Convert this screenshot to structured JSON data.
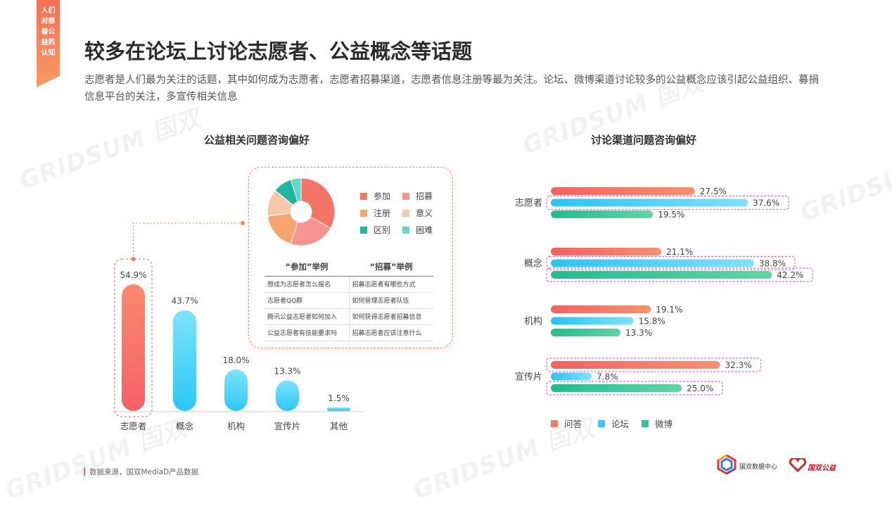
{
  "side_tab": {
    "lines": [
      "人们",
      "对慈",
      "善公",
      "益的",
      "认知"
    ]
  },
  "title": "较多在论坛上讨论志愿者、公益概念等话题",
  "subtitle": "志愿者是人们最为关注的话题，其中如何成为志愿者，志愿者招募渠道，志愿者信息注册等最为关注。论坛、微博渠道讨论较多的公益概念应该引起公益组织、募捐信息平台的关注，多宣传相关信息",
  "left_panel": {
    "title": "公益相关问题咨询偏好",
    "pie_legend": [
      {
        "label": "参加",
        "color": "#f47468"
      },
      {
        "label": "招募",
        "color": "#f59490"
      },
      {
        "label": "注册",
        "color": "#f7a56e"
      },
      {
        "label": "意义",
        "color": "#f8c6a8"
      },
      {
        "label": "区别",
        "color": "#1cb79c"
      },
      {
        "label": "困难",
        "color": "#64d8c8"
      }
    ],
    "table": {
      "headers": [
        "“参加”举例",
        "“招募”举例"
      ],
      "rows": [
        [
          "想成为志愿者怎么报名",
          "招募志愿者有哪些方式"
        ],
        [
          "志愿者QQ群",
          "如何管理志愿者队伍"
        ],
        [
          "腾讯公益志愿者如何加入",
          "如何获得志愿者招募信息"
        ],
        [
          "公益志愿者有技能要求吗",
          "招募志愿者应该注意什么"
        ]
      ]
    }
  },
  "right_panel": {
    "title": "讨论渠道问题咨询偏好"
  },
  "chart_data": [
    {
      "type": "bar",
      "title": "公益相关问题咨询偏好",
      "categories": [
        "志愿者",
        "概念",
        "机构",
        "宣传片",
        "其他"
      ],
      "values": [
        54.9,
        43.7,
        18.0,
        13.3,
        1.5
      ],
      "value_labels": [
        "54.9%",
        "43.7%",
        "18.0%",
        "13.3%",
        "1.5%"
      ],
      "unit": "%",
      "highlight": "志愿者",
      "colors": {
        "highlight": "#f8725f",
        "normal": "#32cdf7"
      }
    },
    {
      "type": "pie",
      "labels": [
        "参加",
        "招募",
        "注册",
        "意义",
        "区别",
        "困难"
      ],
      "values": [
        33,
        22,
        18,
        13,
        9,
        5
      ],
      "colors": [
        "#f47468",
        "#f59490",
        "#f7a56e",
        "#f8c6a8",
        "#1cb79c",
        "#64d8c8"
      ]
    },
    {
      "type": "bar",
      "orientation": "horizontal",
      "title": "讨论渠道问题咨询偏好",
      "categories": [
        "志愿者",
        "概念",
        "机构",
        "宣传片"
      ],
      "series": [
        {
          "name": "问答",
          "values": [
            27.5,
            21.1,
            19.1,
            32.3
          ],
          "labels": [
            "27.5%",
            "21.1%",
            "19.1%",
            "32.3%"
          ],
          "color": "#f67a66"
        },
        {
          "name": "论坛",
          "values": [
            37.6,
            38.8,
            15.8,
            7.8
          ],
          "labels": [
            "37.6%",
            "38.8%",
            "15.8%",
            "7.8%"
          ],
          "color": "#38c8f5"
        },
        {
          "name": "微博",
          "values": [
            19.5,
            42.2,
            13.3,
            25.0
          ],
          "labels": [
            "19.5%",
            "42.2%",
            "13.3%",
            "25.0%"
          ],
          "color": "#2ec49a"
        }
      ],
      "highlights": [
        [
          0,
          1
        ],
        [
          1,
          1
        ],
        [
          1,
          2
        ],
        [
          3,
          0
        ],
        [
          3,
          2
        ]
      ],
      "legend": "bottom-left",
      "unit": "%"
    }
  ],
  "source": "数据来源，国双MediaD产品数据",
  "footer": {
    "brand1": "国双数据中心",
    "brand2": "国双公益"
  },
  "watermark": "GRIDSUM 国双"
}
